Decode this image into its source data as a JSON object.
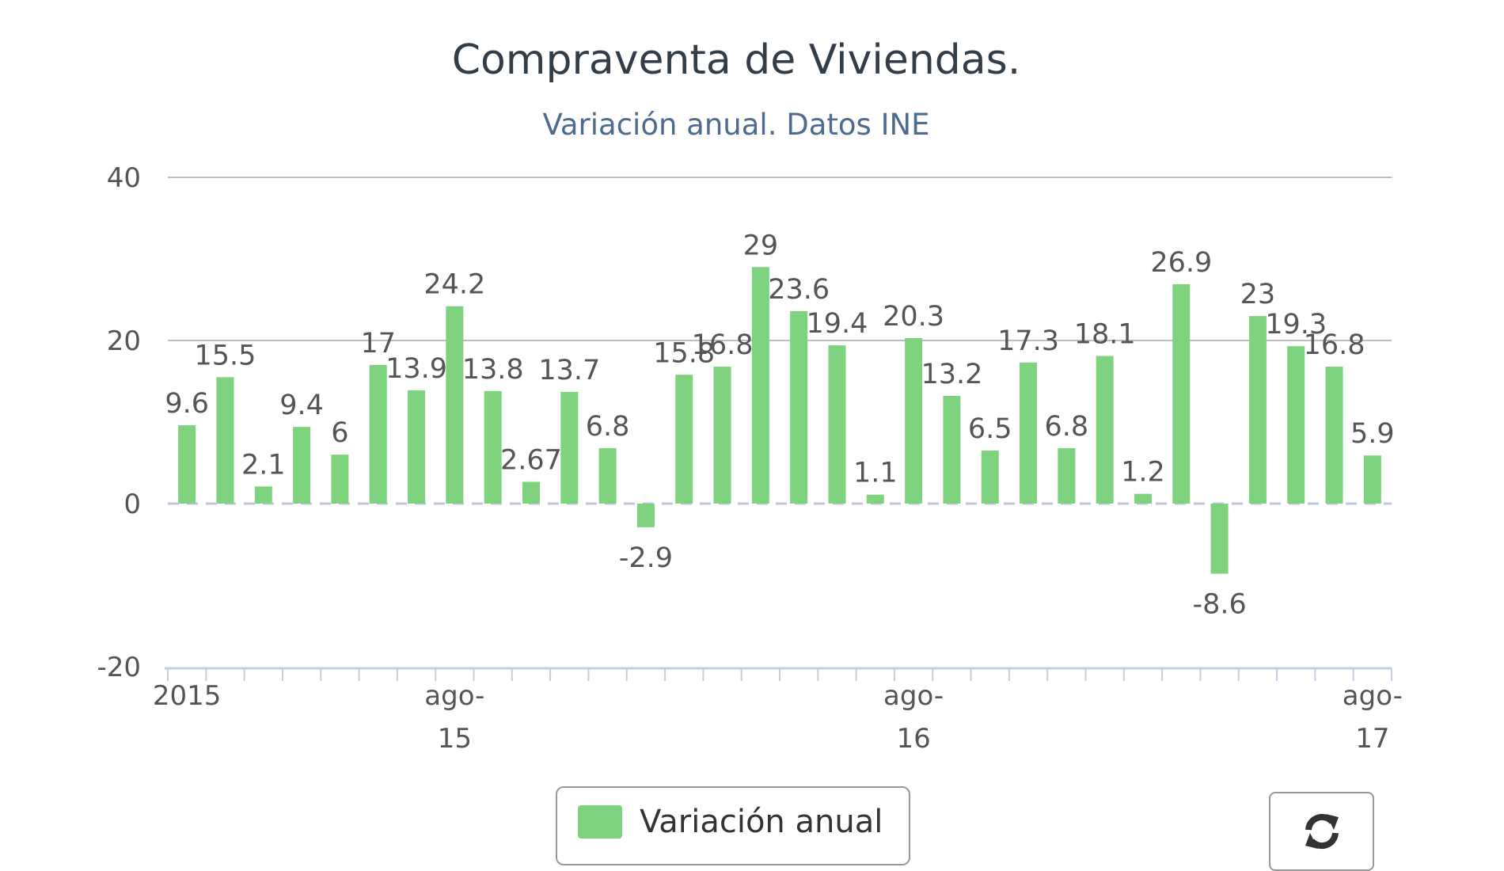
{
  "chart_data": {
    "type": "bar",
    "title": "Compraventa de Viviendas.",
    "subtitle": "Variación anual. Datos INE",
    "ylim": [
      -20,
      40
    ],
    "yticks": [
      "40",
      "20",
      "0",
      "-20"
    ],
    "grid": true,
    "legend_placement": "bottom",
    "series": [
      {
        "name": "Variación anual",
        "color": "#7fd37f",
        "values": [
          9.6,
          15.5,
          2.1,
          9.4,
          6,
          17,
          13.9,
          24.2,
          13.8,
          2.67,
          13.7,
          6.8,
          -2.9,
          15.8,
          16.8,
          29,
          23.6,
          19.4,
          1.1,
          20.3,
          13.2,
          6.5,
          17.3,
          6.8,
          18.1,
          1.2,
          26.9,
          -8.6,
          23,
          19.3,
          16.8,
          5.9
        ],
        "labels": [
          "9.6",
          "15.5",
          "2.1",
          "9.4",
          "6",
          "17",
          "13.9",
          "24.2",
          "13.8",
          "2.67",
          "13.7",
          "6.8",
          "-2.9",
          "15.8",
          "16.8",
          "29",
          "23.6",
          "19.4",
          "1.1",
          "20.3",
          "13.2",
          "6.5",
          "17.3",
          "6.8",
          "18.1",
          "1.2",
          "26.9",
          "-8.6",
          "23",
          "19.3",
          "16.8",
          "5.9"
        ]
      }
    ],
    "xtick_labels": [
      {
        "index": 0,
        "lines": [
          "2015"
        ]
      },
      {
        "index": 7,
        "lines": [
          "ago-",
          "15"
        ]
      },
      {
        "index": 19,
        "lines": [
          "ago-",
          "16"
        ]
      },
      {
        "index": 31,
        "lines": [
          "ago-",
          "17"
        ]
      }
    ]
  },
  "legend": {
    "label": "Variación anual",
    "color": "#7fd37f"
  },
  "controls": {
    "refresh_icon": "refresh-icon"
  },
  "colors": {
    "gridline": "#bfbfbf",
    "axis": "#c0d0e0",
    "zero_line": "#c0c8e0"
  }
}
